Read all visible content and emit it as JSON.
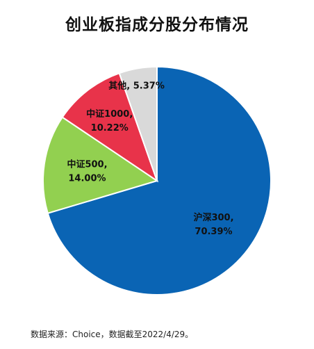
{
  "chart_data": {
    "type": "pie",
    "title": "创业板指成分股分布情况",
    "slices": [
      {
        "label": "沪深300",
        "value": 70.39,
        "value_text": "70.39%",
        "color": "#0a64b4",
        "text_color": "#111111"
      },
      {
        "label": "中证500",
        "value": 14.0,
        "value_text": "14.00%",
        "color": "#92d050",
        "text_color": "#111111"
      },
      {
        "label": "中证1000",
        "value": 10.22,
        "value_text": "10.22%",
        "color": "#e8334a",
        "text_color": "#111111"
      },
      {
        "label": "其他",
        "value": 5.37,
        "value_text": "5.37%",
        "color": "#d9d9d9",
        "text_color": "#111111"
      }
    ],
    "start_angle_deg": 0,
    "direction": "clockwise"
  },
  "source": "数据来源：Choice，数据截至2022/4/29。"
}
